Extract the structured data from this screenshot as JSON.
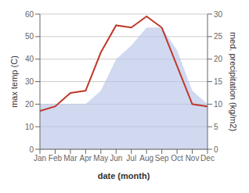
{
  "chart_data": {
    "type": "line",
    "xlabel": "date (month)",
    "ylabel": "max temp (C)",
    "y2label": "med. precipitation (kg/m2)",
    "categories": [
      "Jan",
      "Feb",
      "Mar",
      "Apr",
      "May",
      "Jun",
      "Jul",
      "Aug",
      "Sep",
      "Oct",
      "Nov",
      "Dec"
    ],
    "series": [
      {
        "type": "area",
        "axis": "y2",
        "color": "#b8c4ea",
        "values": [
          10,
          10,
          10,
          10,
          13,
          20,
          23,
          27,
          27,
          22,
          13,
          10
        ]
      },
      {
        "type": "line",
        "color": "#c0392b",
        "values": [
          17,
          19,
          25,
          26,
          43,
          55,
          54,
          59,
          54,
          37,
          20,
          19
        ]
      }
    ],
    "ylim": [
      0,
      60
    ],
    "yticks": [
      0,
      10,
      20,
      30,
      40,
      50,
      60
    ],
    "y2lim": [
      0,
      30
    ],
    "y2ticks": [
      0,
      5,
      10,
      15,
      20,
      25,
      30
    ],
    "grid": true
  }
}
